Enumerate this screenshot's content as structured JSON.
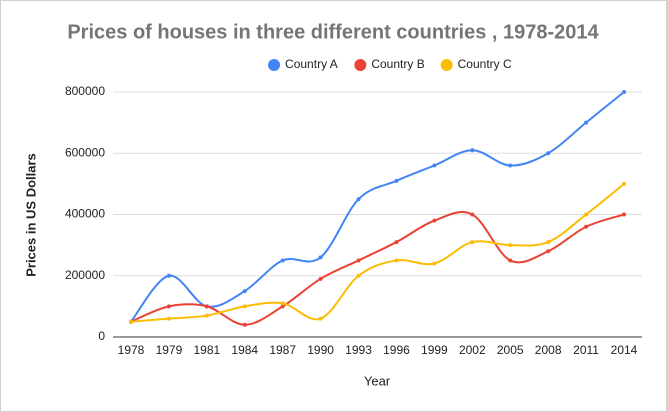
{
  "chart_data": {
    "type": "line",
    "title": "Prices of houses in three different countries , 1978-2014",
    "x_label": "Year",
    "y_label": "Prices in US Dollars",
    "categories": [
      "1978",
      "1979",
      "1981",
      "1984",
      "1987",
      "1990",
      "1993",
      "1996",
      "1999",
      "2002",
      "2005",
      "2008",
      "2011",
      "2014"
    ],
    "series": [
      {
        "name": "Country A",
        "color": "#4285f4",
        "values": [
          50000,
          200000,
          100000,
          150000,
          250000,
          260000,
          450000,
          510000,
          560000,
          610000,
          560000,
          600000,
          700000,
          800000
        ]
      },
      {
        "name": "Country B",
        "color": "#ea4335",
        "values": [
          50000,
          100000,
          100000,
          40000,
          100000,
          190000,
          250000,
          310000,
          380000,
          400000,
          250000,
          280000,
          360000,
          400000
        ]
      },
      {
        "name": "Country C",
        "color": "#fbbc04",
        "values": [
          50000,
          60000,
          70000,
          100000,
          110000,
          60000,
          200000,
          250000,
          240000,
          310000,
          300000,
          310000,
          400000,
          500000
        ]
      }
    ],
    "ylim": [
      0,
      800000
    ],
    "yticks": [
      0,
      200000,
      400000,
      600000,
      800000
    ],
    "grid": true,
    "smooth": true,
    "legend": "top"
  }
}
